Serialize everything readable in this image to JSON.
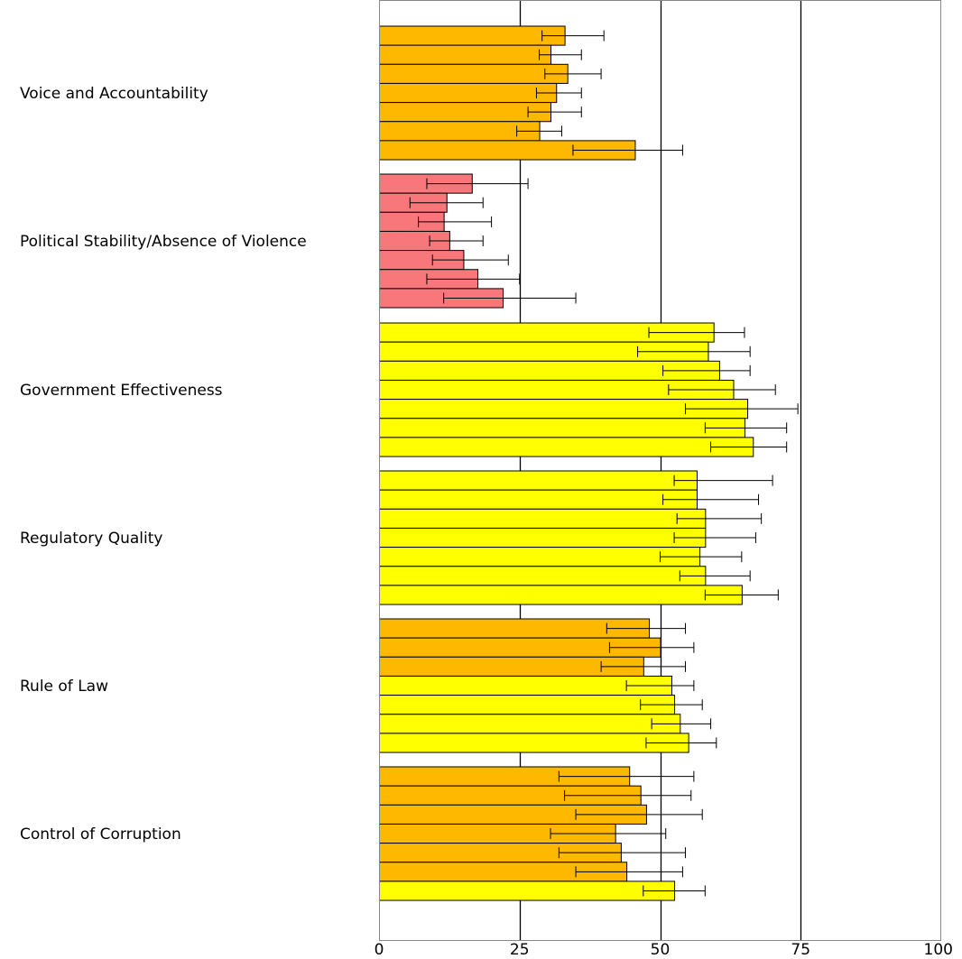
{
  "chart_data": {
    "type": "bar",
    "orientation": "horizontal",
    "xlim": [
      0,
      100
    ],
    "x_ticks": [
      "0",
      "25",
      "50",
      "75",
      "100"
    ],
    "grid": true,
    "categories": [
      "Voice and Accountability",
      "Political Stability/Absence of Violence",
      "Government Effectiveness",
      "Regulatory Quality",
      "Rule of Law",
      "Control of Corruption"
    ],
    "colors": {
      "orange": "#FFB800",
      "red": "#F7777A",
      "yellow": "#FFFF00",
      "outline": "#000000"
    },
    "groups": [
      {
        "bars": [
          {
            "value": 33,
            "low": 29,
            "high": 40,
            "color": "orange"
          },
          {
            "value": 30.5,
            "low": 28.5,
            "high": 36,
            "color": "orange"
          },
          {
            "value": 33.5,
            "low": 29.5,
            "high": 39.5,
            "color": "orange"
          },
          {
            "value": 31.5,
            "low": 28,
            "high": 36,
            "color": "orange"
          },
          {
            "value": 30.5,
            "low": 26.5,
            "high": 36,
            "color": "orange"
          },
          {
            "value": 28.5,
            "low": 24.5,
            "high": 32.5,
            "color": "orange"
          },
          {
            "value": 45.5,
            "low": 34.5,
            "high": 54,
            "color": "orange"
          }
        ]
      },
      {
        "bars": [
          {
            "value": 16.5,
            "low": 8.5,
            "high": 26.5,
            "color": "red"
          },
          {
            "value": 12,
            "low": 5.5,
            "high": 18.5,
            "color": "red"
          },
          {
            "value": 11.5,
            "low": 7,
            "high": 20,
            "color": "red"
          },
          {
            "value": 12.5,
            "low": 9,
            "high": 18.5,
            "color": "red"
          },
          {
            "value": 15,
            "low": 9.5,
            "high": 23,
            "color": "red"
          },
          {
            "value": 17.5,
            "low": 8.5,
            "high": 25,
            "color": "red"
          },
          {
            "value": 22,
            "low": 11.5,
            "high": 35,
            "color": "red"
          }
        ]
      },
      {
        "bars": [
          {
            "value": 59.5,
            "low": 48,
            "high": 65,
            "color": "yellow"
          },
          {
            "value": 58.5,
            "low": 46,
            "high": 66,
            "color": "yellow"
          },
          {
            "value": 60.5,
            "low": 50.5,
            "high": 66,
            "color": "yellow"
          },
          {
            "value": 63,
            "low": 51.5,
            "high": 70.5,
            "color": "yellow"
          },
          {
            "value": 65.5,
            "low": 54.5,
            "high": 74.5,
            "color": "yellow"
          },
          {
            "value": 65,
            "low": 58,
            "high": 72.5,
            "color": "yellow"
          },
          {
            "value": 66.5,
            "low": 59,
            "high": 72.5,
            "color": "yellow"
          }
        ]
      },
      {
        "bars": [
          {
            "value": 56.5,
            "low": 52.5,
            "high": 70,
            "color": "yellow"
          },
          {
            "value": 56.5,
            "low": 50.5,
            "high": 67.5,
            "color": "yellow"
          },
          {
            "value": 58,
            "low": 53,
            "high": 68,
            "color": "yellow"
          },
          {
            "value": 58,
            "low": 52.5,
            "high": 67,
            "color": "yellow"
          },
          {
            "value": 57,
            "low": 50,
            "high": 64.5,
            "color": "yellow"
          },
          {
            "value": 58,
            "low": 53.5,
            "high": 66,
            "color": "yellow"
          },
          {
            "value": 64.5,
            "low": 58,
            "high": 71,
            "color": "yellow"
          }
        ]
      },
      {
        "bars": [
          {
            "value": 48,
            "low": 40.5,
            "high": 54.5,
            "color": "orange"
          },
          {
            "value": 50,
            "low": 41,
            "high": 56,
            "color": "orange"
          },
          {
            "value": 47,
            "low": 39.5,
            "high": 54.5,
            "color": "orange"
          },
          {
            "value": 52,
            "low": 44,
            "high": 56,
            "color": "yellow"
          },
          {
            "value": 52.5,
            "low": 46.5,
            "high": 57.5,
            "color": "yellow"
          },
          {
            "value": 53.5,
            "low": 48.5,
            "high": 59,
            "color": "yellow"
          },
          {
            "value": 55,
            "low": 47.5,
            "high": 60,
            "color": "yellow"
          }
        ]
      },
      {
        "bars": [
          {
            "value": 44.5,
            "low": 32,
            "high": 56,
            "color": "orange"
          },
          {
            "value": 46.5,
            "low": 33,
            "high": 55.5,
            "color": "orange"
          },
          {
            "value": 47.5,
            "low": 35,
            "high": 57.5,
            "color": "orange"
          },
          {
            "value": 42,
            "low": 30.5,
            "high": 51,
            "color": "orange"
          },
          {
            "value": 43,
            "low": 32,
            "high": 54.5,
            "color": "orange"
          },
          {
            "value": 44,
            "low": 35,
            "high": 54,
            "color": "orange"
          },
          {
            "value": 52.5,
            "low": 47,
            "high": 58,
            "color": "yellow"
          }
        ]
      }
    ]
  }
}
